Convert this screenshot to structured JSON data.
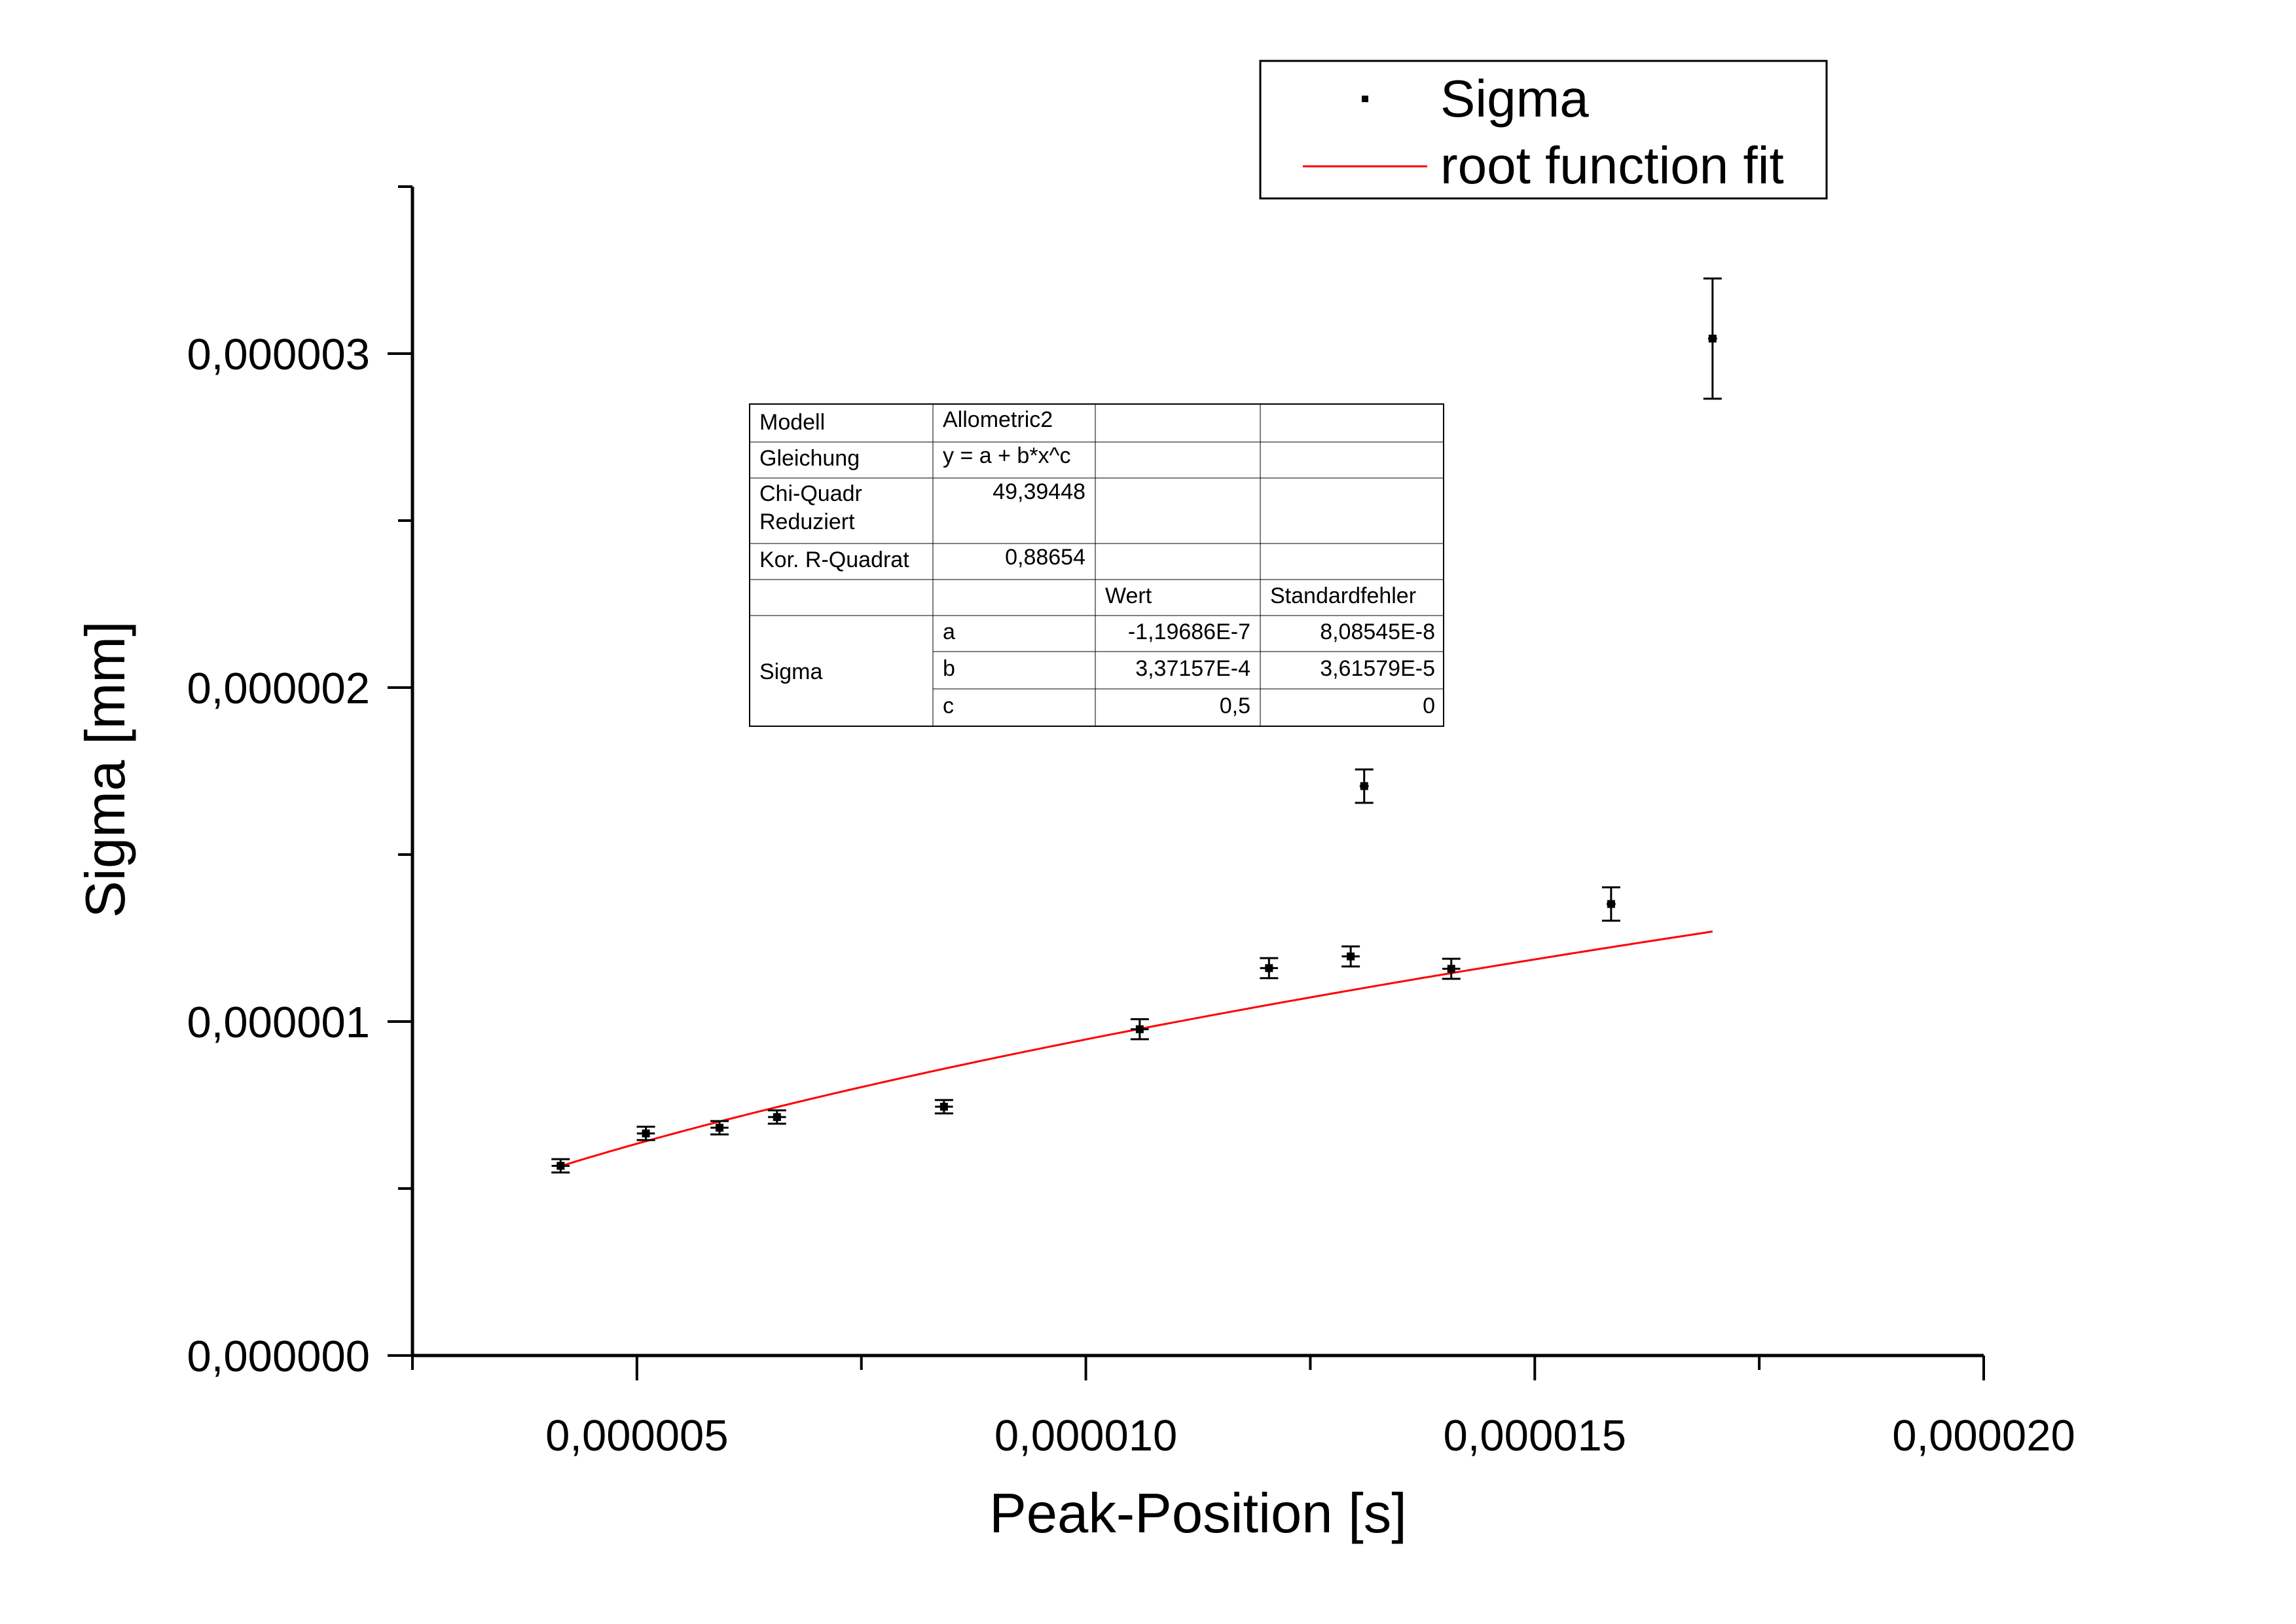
{
  "chart_data": {
    "type": "scatter",
    "xlabel": "Peak-Position [s]",
    "ylabel": "Sigma [mm]",
    "xlim": [
      2.5e-06,
      2e-05
    ],
    "ylim": [
      0,
      3.5e-06
    ],
    "x_major_ticks": [
      5e-06,
      1e-05,
      1.5e-05,
      2e-05
    ],
    "x_tick_labels": [
      "0,000005",
      "0,000010",
      "0,000015",
      "0,000020"
    ],
    "y_major_ticks": [
      0,
      1e-06,
      2e-06,
      3e-06
    ],
    "y_tick_labels": [
      "0,000000",
      "0,000001",
      "0,000002",
      "0,000003"
    ],
    "grid": false,
    "legend_position": "top-right",
    "series": [
      {
        "name": "Sigma",
        "marker": "square",
        "color": "#000000",
        "points": [
          {
            "x": 4.15e-06,
            "y": 5.68e-07,
            "yerr": 2e-08,
            "xerr": 1e-07
          },
          {
            "x": 5.1e-06,
            "y": 6.65e-07,
            "yerr": 2e-08,
            "xerr": 1e-07
          },
          {
            "x": 5.92e-06,
            "y": 6.82e-07,
            "yerr": 2e-08,
            "xerr": 1e-07
          },
          {
            "x": 6.56e-06,
            "y": 7.14e-07,
            "yerr": 2e-08,
            "xerr": 1e-07
          },
          {
            "x": 8.42e-06,
            "y": 7.45e-07,
            "yerr": 2e-08,
            "xerr": 1e-07
          },
          {
            "x": 1.06e-05,
            "y": 9.77e-07,
            "yerr": 3e-08,
            "xerr": 1e-07
          },
          {
            "x": 1.204e-05,
            "y": 1.16e-06,
            "yerr": 3e-08,
            "xerr": 1e-07
          },
          {
            "x": 1.295e-05,
            "y": 1.195e-06,
            "yerr": 3e-08,
            "xerr": 1e-07
          },
          {
            "x": 1.31e-05,
            "y": 1.705e-06,
            "yerr": 5e-08,
            "xerr": 5e-08
          },
          {
            "x": 1.407e-05,
            "y": 1.158e-06,
            "yerr": 3e-08,
            "xerr": 1e-07
          },
          {
            "x": 1.585e-05,
            "y": 1.352e-06,
            "yerr": 5e-08,
            "xerr": 5e-08
          },
          {
            "x": 1.698e-05,
            "y": 3.045e-06,
            "yerr": 1.8e-07,
            "xerr": 5e-08
          }
        ]
      },
      {
        "name": "root function fit",
        "type": "line",
        "color": "#ff0000",
        "function": "y = a + b*x^c",
        "a": -1.19686e-07,
        "b": 0.000337157,
        "c": 0.5,
        "x_range": [
          4.15e-06,
          1.698e-05
        ]
      }
    ],
    "fit_table": {
      "rows": [
        [
          "Modell",
          "Allometric2",
          "",
          ""
        ],
        [
          "Gleichung",
          "y = a + b*x^c",
          "",
          ""
        ],
        [
          "Chi-Quadr\nReduziert",
          "49,39448",
          "",
          ""
        ],
        [
          "Kor. R-Quadrat",
          "0,88654",
          "",
          ""
        ],
        [
          "",
          "",
          "Wert",
          "Standardfehler"
        ],
        [
          "Sigma",
          "a",
          "-1,19686E-7",
          "8,08545E-8"
        ],
        [
          "",
          "b",
          "3,37157E-4",
          "3,61579E-5"
        ],
        [
          "",
          "c",
          "0,5",
          "0"
        ]
      ],
      "model_label": "Modell",
      "model_value": "Allometric2",
      "equation_label": "Gleichung",
      "equation_value": "y = a + b*x^c",
      "chi_label_line1": "Chi-Quadr",
      "chi_label_line2": "Reduziert",
      "chi_value": "49,39448",
      "r2_label": "Kor. R-Quadrat",
      "r2_value": "0,88654",
      "col_value": "Wert",
      "col_error": "Standardfehler",
      "param_group": "Sigma",
      "params": [
        {
          "name": "a",
          "value": "-1,19686E-7",
          "error": "8,08545E-8"
        },
        {
          "name": "b",
          "value": "3,37157E-4",
          "error": "3,61579E-5"
        },
        {
          "name": "c",
          "value": "0,5",
          "error": "0"
        }
      ]
    }
  }
}
